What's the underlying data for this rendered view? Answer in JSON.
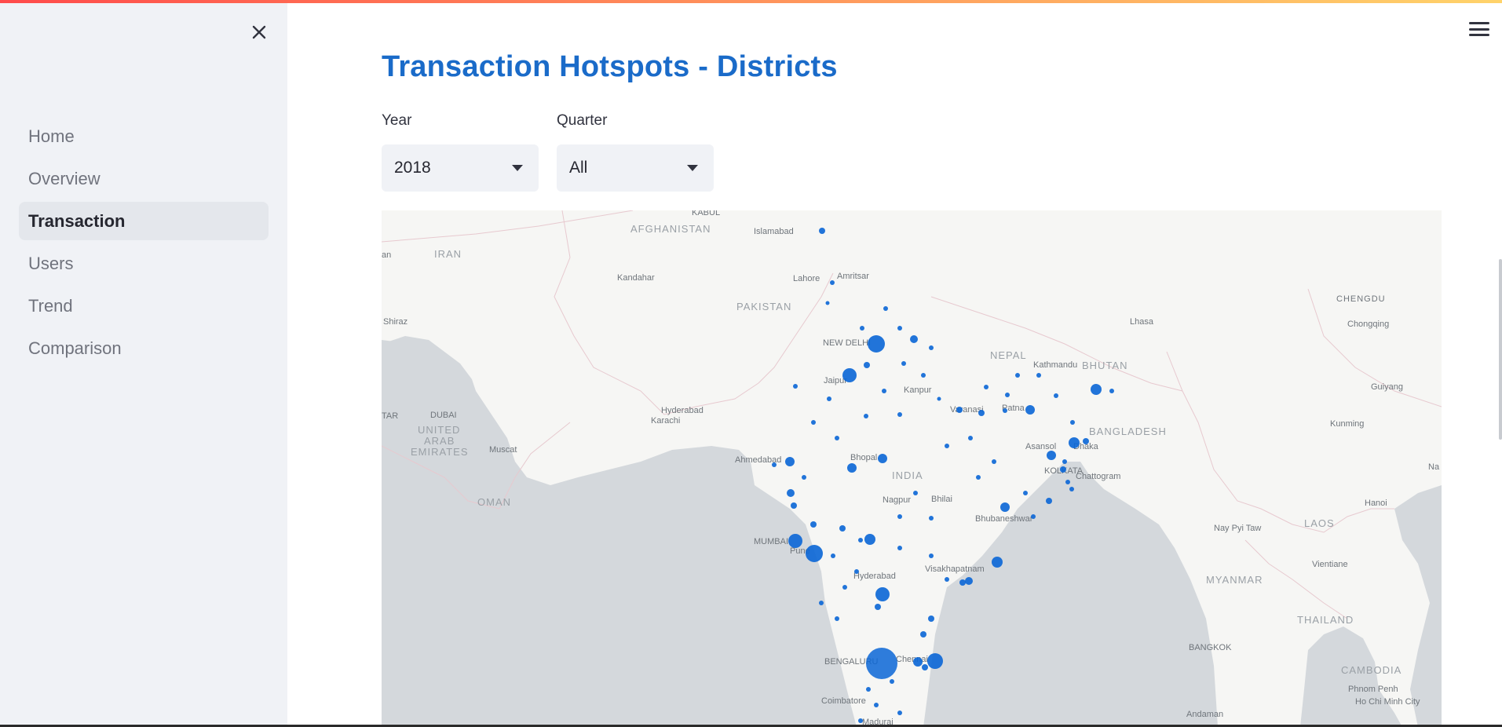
{
  "sidebar": {
    "items": [
      {
        "label": "Home",
        "active": false
      },
      {
        "label": "Overview",
        "active": false
      },
      {
        "label": "Transaction",
        "active": true
      },
      {
        "label": "Users",
        "active": false
      },
      {
        "label": "Trend",
        "active": false
      },
      {
        "label": "Comparison",
        "active": false
      }
    ],
    "close_icon": "close-icon"
  },
  "header": {
    "menu_icon": "hamburger-menu-icon"
  },
  "main": {
    "title": "Transaction Hotspots - Districts",
    "year": {
      "label": "Year",
      "value": "2018"
    },
    "quarter": {
      "label": "Quarter",
      "value": "All"
    }
  },
  "colors": {
    "accent": "#1a6bc9",
    "marker": "#0a66d6",
    "sidebar_bg": "#f0f2f6",
    "water": "#d4d8dc"
  },
  "map": {
    "countries": [
      "AFGHANISTAN",
      "IRAN",
      "PAKISTAN",
      "NEPAL",
      "BHUTAN",
      "BANGLADESH",
      "INDIA",
      "MYANMAR",
      "LAOS",
      "THAILAND",
      "CAMBODIA",
      "OMAN",
      "UNITED",
      "ARAB",
      "EMIRATES",
      "CHENGDU"
    ],
    "cities": [
      "KABUL",
      "Islamabad",
      "Amritsar",
      "Kandahar",
      "Lahore",
      "Shiraz",
      "NEW DELHI",
      "Jaipur",
      "Kanpur",
      "Kathmandu",
      "Lhasa",
      "Chongqing",
      "Guiyang",
      "Kunming",
      "Hyderabad",
      "Karachi",
      "DUBAI",
      "Muscat",
      "Ahmedabad",
      "Bhopal",
      "Varanasi",
      "Patna",
      "Asansol",
      "Dhaka",
      "KOLKATA",
      "Chattogram",
      "Nagpur",
      "Bhilai",
      "Bhubaneshwar",
      "MUMBAI",
      "Pune",
      "Hyderabad",
      "Visakhapatnam",
      "BENGALURU",
      "Chennai",
      "Coimbatore",
      "Madurai",
      "Nay Pyi Taw",
      "Vientiane",
      "Hanoi",
      "BANGKOK",
      "Phnom Penh",
      "Ho Chi Minh City",
      "Andaman",
      "TAR",
      "an",
      "Na"
    ]
  }
}
